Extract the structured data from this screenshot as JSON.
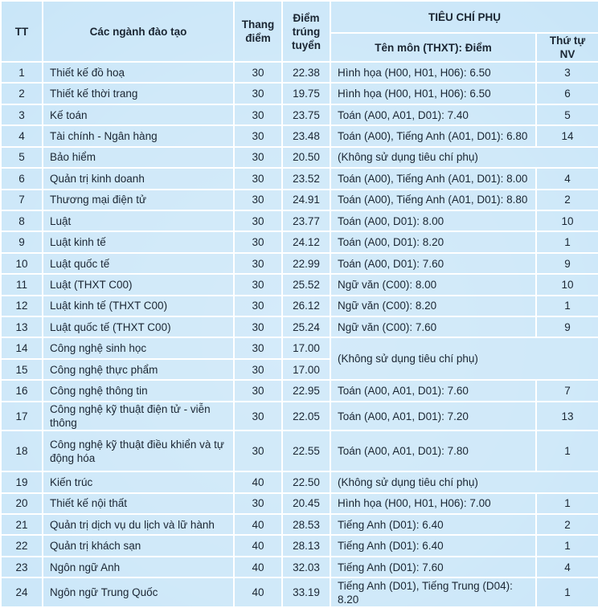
{
  "table": {
    "header": {
      "tt": "TT",
      "name": "Các ngành đào tạo",
      "scale": "Thang điểm",
      "score": "Điểm trúng tuyển",
      "group": "TIÊU CHÍ PHỤ",
      "criterion": "Tên môn (THXT): Điểm",
      "order": "Thứ tự NV"
    },
    "rows": [
      {
        "tt": "1",
        "name": "Thiết kế đồ hoạ",
        "scale": "30",
        "score": "22.38",
        "criterion": "Hình họa (H00, H01, H06): 6.50",
        "order": "3"
      },
      {
        "tt": "2",
        "name": "Thiết kế thời trang",
        "scale": "30",
        "score": "19.75",
        "criterion": "Hình họa (H00, H01, H06): 6.50",
        "order": "6"
      },
      {
        "tt": "3",
        "name": "Kế toán",
        "scale": "30",
        "score": "23.75",
        "criterion": "Toán (A00, A01, D01): 7.40",
        "order": "5"
      },
      {
        "tt": "4",
        "name": "Tài chính - Ngân hàng",
        "scale": "30",
        "score": "23.48",
        "criterion": "Toán (A00), Tiếng Anh (A01, D01): 6.80",
        "order": "14"
      },
      {
        "tt": "5",
        "name": "Bảo hiểm",
        "scale": "30",
        "score": "20.50",
        "criterion": "(Không sử dụng tiêu chí phụ)"
      },
      {
        "tt": "6",
        "name": "Quản trị kinh doanh",
        "scale": "30",
        "score": "23.52",
        "criterion": "Toán (A00), Tiếng Anh (A01, D01): 8.00",
        "order": "4"
      },
      {
        "tt": "7",
        "name": "Thương mại điện tử",
        "scale": "30",
        "score": "24.91",
        "criterion": "Toán (A00), Tiếng Anh (A01, D01): 8.80",
        "order": "2"
      },
      {
        "tt": "8",
        "name": "Luật",
        "scale": "30",
        "score": "23.77",
        "criterion": "Toán (A00, D01): 8.00",
        "order": "10"
      },
      {
        "tt": "9",
        "name": "Luật kinh tế",
        "scale": "30",
        "score": "24.12",
        "criterion": "Toán (A00, D01): 8.20",
        "order": "1"
      },
      {
        "tt": "10",
        "name": "Luật quốc tế",
        "scale": "30",
        "score": "22.99",
        "criterion": "Toán (A00, D01): 7.60",
        "order": "9"
      },
      {
        "tt": "11",
        "name": "Luật (THXT C00)",
        "scale": "30",
        "score": "25.52",
        "criterion": "Ngữ văn (C00): 8.00",
        "order": "10"
      },
      {
        "tt": "12",
        "name": "Luật kinh tế (THXT C00)",
        "scale": "30",
        "score": "26.12",
        "criterion": "Ngữ văn (C00): 8.20",
        "order": "1"
      },
      {
        "tt": "13",
        "name": "Luật quốc tế (THXT C00)",
        "scale": "30",
        "score": "25.24",
        "criterion": "Ngữ văn (C00): 7.60",
        "order": "9"
      },
      {
        "tt": "14",
        "name": "Công nghệ sinh học",
        "scale": "30",
        "score": "17.00",
        "criterion": "(Không sử dụng tiêu chí phụ)"
      },
      {
        "tt": "15",
        "name": "Công nghệ thực phẩm",
        "scale": "30",
        "score": "17.00"
      },
      {
        "tt": "16",
        "name": "Công nghệ thông tin",
        "scale": "30",
        "score": "22.95",
        "criterion": "Toán (A00, A01, D01): 7.60",
        "order": "7"
      },
      {
        "tt": "17",
        "name": "Công nghệ kỹ thuật điện tử - viễn thông",
        "scale": "30",
        "score": "22.05",
        "criterion": "Toán (A00, A01, D01): 7.20",
        "order": "13"
      },
      {
        "tt": "18",
        "name": "Công nghệ kỹ thuật điều khiển và tự động hóa",
        "scale": "30",
        "score": "22.55",
        "criterion": "Toán (A00, A01, D01): 7.80",
        "order": "1"
      },
      {
        "tt": "19",
        "name": "Kiến trúc",
        "scale": "40",
        "score": "22.50",
        "criterion": "(Không sử dụng tiêu chí phụ)"
      },
      {
        "tt": "20",
        "name": "Thiết kế nội thất",
        "scale": "30",
        "score": "20.45",
        "criterion": "Hình họa (H00, H01, H06): 7.00",
        "order": "1"
      },
      {
        "tt": "21",
        "name": "Quản trị dịch vụ du lịch và lữ hành",
        "scale": "40",
        "score": "28.53",
        "criterion": "Tiếng Anh (D01): 6.40",
        "order": "2"
      },
      {
        "tt": "22",
        "name": "Quản trị khách sạn",
        "scale": "40",
        "score": "28.13",
        "criterion": "Tiếng Anh (D01): 6.40",
        "order": "1"
      },
      {
        "tt": "23",
        "name": "Ngôn ngữ Anh",
        "scale": "40",
        "score": "32.03",
        "criterion": "Tiếng Anh (D01): 7.60",
        "order": "4"
      },
      {
        "tt": "24",
        "name": "Ngôn ngữ Trung Quốc",
        "scale": "40",
        "score": "33.19",
        "criterion": "Tiếng Anh (D01), Tiếng Trung (D04): 8.20",
        "order": "1"
      }
    ]
  }
}
